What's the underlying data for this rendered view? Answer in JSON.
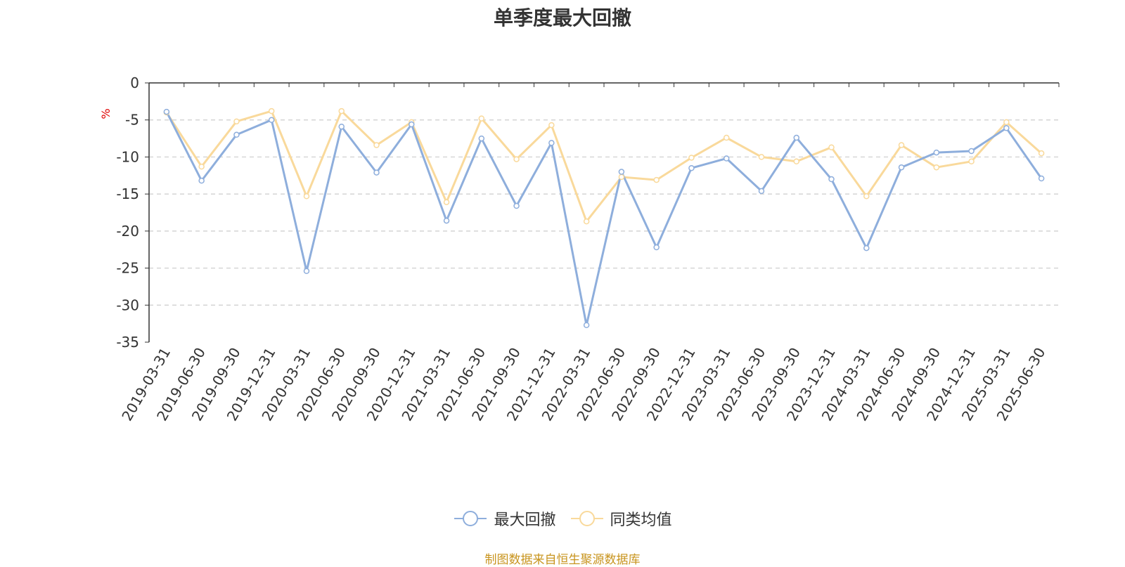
{
  "chart_data": {
    "type": "line",
    "title": "单季度最大回撤",
    "ylabel": "%",
    "ylim": [
      -35,
      0
    ],
    "yticks": [
      0,
      -5,
      -10,
      -15,
      -20,
      -25,
      -30,
      -35
    ],
    "grid": true,
    "legend_position": "bottom-center",
    "categories": [
      "2019-03-31",
      "2019-06-30",
      "2019-09-30",
      "2019-12-31",
      "2020-03-31",
      "2020-06-30",
      "2020-09-30",
      "2020-12-31",
      "2021-03-31",
      "2021-06-30",
      "2021-09-30",
      "2021-12-31",
      "2022-03-31",
      "2022-06-30",
      "2022-09-30",
      "2022-12-31",
      "2023-03-31",
      "2023-06-30",
      "2023-09-30",
      "2023-12-31",
      "2024-03-31",
      "2024-06-30",
      "2024-09-30",
      "2024-12-31",
      "2025-03-31",
      "2025-06-30"
    ],
    "series": [
      {
        "name": "最大回撤",
        "color": "#8eaedc",
        "values": [
          -3.9,
          -13.2,
          -7.0,
          -5.0,
          -25.4,
          -5.9,
          -12.1,
          -5.6,
          -18.6,
          -7.5,
          -16.6,
          -8.1,
          -32.7,
          -12.0,
          -22.2,
          -11.5,
          -10.2,
          -14.6,
          -7.4,
          -13.0,
          -22.3,
          -11.4,
          -9.4,
          -9.2,
          -6.1,
          -12.9
        ]
      },
      {
        "name": "同类均值",
        "color": "#f9d99b",
        "values": [
          -4.0,
          -11.3,
          -5.2,
          -3.8,
          -15.3,
          -3.8,
          -8.4,
          -5.3,
          -16.1,
          -4.8,
          -10.3,
          -5.7,
          -18.7,
          -12.7,
          -13.1,
          -10.1,
          -7.4,
          -10.0,
          -10.6,
          -8.7,
          -15.3,
          -8.4,
          -11.4,
          -10.6,
          -5.3,
          -9.5
        ]
      }
    ]
  },
  "source_note": "制图数据来自恒生聚源数据库"
}
